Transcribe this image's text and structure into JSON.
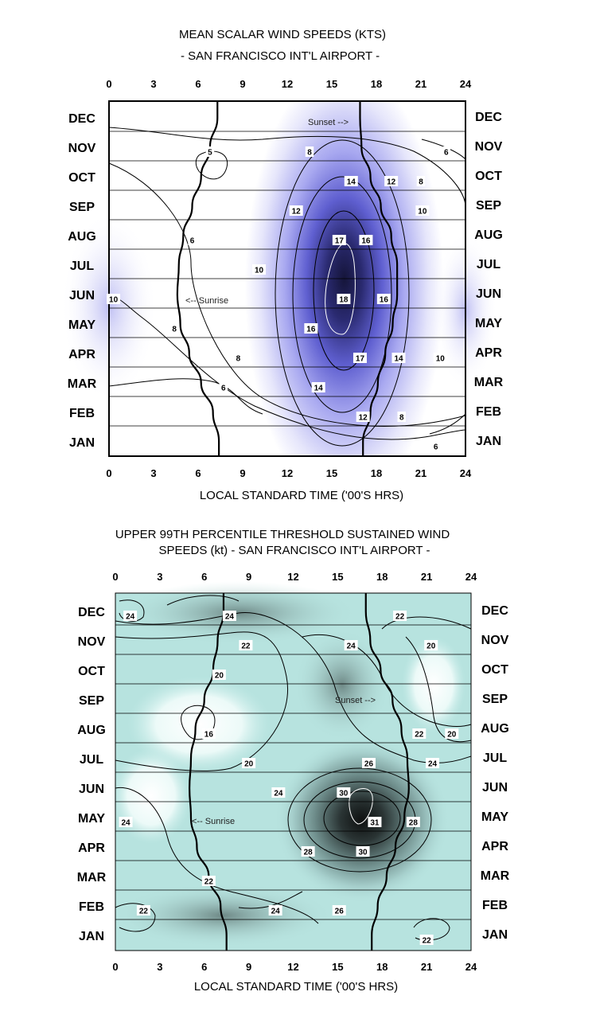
{
  "chart_data": [
    {
      "type": "heatmap",
      "title_line1": "MEAN SCALAR WIND SPEEDS (KTS)",
      "title_line2": "- SAN FRANCISCO INT'L AIRPORT -",
      "xlabel": "LOCAL STANDARD TIME ('00'S HRS)",
      "xticks": [
        "0",
        "3",
        "6",
        "9",
        "12",
        "15",
        "18",
        "21",
        "24"
      ],
      "xlim": [
        0,
        24
      ],
      "months_top_to_bottom": [
        "DEC",
        "NOV",
        "OCT",
        "SEP",
        "AUG",
        "JUL",
        "JUN",
        "MAY",
        "APR",
        "MAR",
        "FEB",
        "JAN"
      ],
      "colorscale": [
        "#ffffff",
        "#8c8cf0",
        "#1a1a40"
      ],
      "contour_levels": [
        5,
        6,
        8,
        10,
        12,
        14,
        16,
        17,
        18
      ],
      "peak": {
        "hour": 15.7,
        "month": "JUN",
        "value": 18
      },
      "contour_labels": [
        {
          "text": "5",
          "hour": 6.8,
          "month": "NOV"
        },
        {
          "text": "8",
          "hour": 13.5,
          "month": "NOV"
        },
        {
          "text": "6",
          "hour": 22.7,
          "month": "NOV"
        },
        {
          "text": "8",
          "hour": 21.0,
          "month": "OCT"
        },
        {
          "text": "14",
          "hour": 16.3,
          "month": "OCT"
        },
        {
          "text": "12",
          "hour": 19.0,
          "month": "OCT"
        },
        {
          "text": "12",
          "hour": 12.6,
          "month": "SEP"
        },
        {
          "text": "10",
          "hour": 21.1,
          "month": "SEP"
        },
        {
          "text": "6",
          "hour": 5.6,
          "month": "AUG"
        },
        {
          "text": "16",
          "hour": 17.3,
          "month": "AUG"
        },
        {
          "text": "17",
          "hour": 15.5,
          "month": "AUG"
        },
        {
          "text": "10",
          "hour": 10.1,
          "month": "JUL"
        },
        {
          "text": "10",
          "hour": 0.3,
          "month": "JUN"
        },
        {
          "text": "18",
          "hour": 15.8,
          "month": "JUN"
        },
        {
          "text": "16",
          "hour": 18.5,
          "month": "JUN"
        },
        {
          "text": "8",
          "hour": 4.4,
          "month": "MAY"
        },
        {
          "text": "16",
          "hour": 13.6,
          "month": "MAY"
        },
        {
          "text": "17",
          "hour": 16.9,
          "month": "APR"
        },
        {
          "text": "14",
          "hour": 19.5,
          "month": "APR"
        },
        {
          "text": "8",
          "hour": 8.7,
          "month": "APR"
        },
        {
          "text": "10",
          "hour": 22.3,
          "month": "APR"
        },
        {
          "text": "14",
          "hour": 14.1,
          "month": "MAR"
        },
        {
          "text": "6",
          "hour": 7.7,
          "month": "MAR"
        },
        {
          "text": "12",
          "hour": 17.1,
          "month": "FEB"
        },
        {
          "text": "8",
          "hour": 19.7,
          "month": "FEB"
        },
        {
          "text": "6",
          "hour": 22.0,
          "month": "JAN"
        }
      ],
      "annotations": {
        "sunset": "Sunset -->",
        "sunrise": "<-- Sunrise"
      },
      "sunrise_curve": [
        {
          "month": "DEC",
          "hour": 7.3
        },
        {
          "month": "NOV",
          "hour": 6.8
        },
        {
          "month": "OCT",
          "hour": 6.2
        },
        {
          "month": "SEP",
          "hour": 5.6
        },
        {
          "month": "AUG",
          "hour": 5.0
        },
        {
          "month": "JUL",
          "hour": 4.7
        },
        {
          "month": "JUN",
          "hour": 4.6
        },
        {
          "month": "MAY",
          "hour": 4.8
        },
        {
          "month": "APR",
          "hour": 5.4
        },
        {
          "month": "MAR",
          "hour": 6.2
        },
        {
          "month": "FEB",
          "hour": 7.0
        },
        {
          "month": "JAN",
          "hour": 7.4
        }
      ],
      "sunset_curve": [
        {
          "month": "DEC",
          "hour": 16.9
        },
        {
          "month": "NOV",
          "hour": 17.0
        },
        {
          "month": "OCT",
          "hour": 17.6
        },
        {
          "month": "SEP",
          "hour": 18.3
        },
        {
          "month": "AUG",
          "hour": 19.0
        },
        {
          "month": "JUL",
          "hour": 19.4
        },
        {
          "month": "JUN",
          "hour": 19.4
        },
        {
          "month": "MAY",
          "hour": 19.1
        },
        {
          "month": "APR",
          "hour": 18.6
        },
        {
          "month": "MAR",
          "hour": 18.1
        },
        {
          "month": "FEB",
          "hour": 17.6
        },
        {
          "month": "JAN",
          "hour": 17.1
        }
      ]
    },
    {
      "type": "heatmap",
      "title_line1": "UPPER 99TH PERCENTILE THRESHOLD SUSTAINED WIND",
      "title_line2": "SPEEDS (kt) - SAN FRANCISCO INT'L AIRPORT -",
      "xlabel": "LOCAL STANDARD TIME ('00'S HRS)",
      "xticks": [
        "0",
        "3",
        "6",
        "9",
        "12",
        "15",
        "18",
        "21",
        "24"
      ],
      "xlim": [
        0,
        24
      ],
      "months_top_to_bottom": [
        "DEC",
        "NOV",
        "OCT",
        "SEP",
        "AUG",
        "JUL",
        "JUN",
        "MAY",
        "APR",
        "MAR",
        "FEB",
        "JAN"
      ],
      "colorscale": [
        "#ffffff",
        "#a8e0dc",
        "#101414"
      ],
      "contour_levels": [
        16,
        20,
        22,
        24,
        26,
        28,
        30,
        31
      ],
      "peak": {
        "hour": 16.7,
        "month": "MAY",
        "value": 31
      },
      "contour_labels": [
        {
          "text": "24",
          "hour": 7.7,
          "month": "DEC"
        },
        {
          "text": "24",
          "hour": 1.0,
          "month": "DEC"
        },
        {
          "text": "22",
          "hour": 19.2,
          "month": "DEC"
        },
        {
          "text": "22",
          "hour": 8.8,
          "month": "NOV"
        },
        {
          "text": "24",
          "hour": 15.9,
          "month": "NOV"
        },
        {
          "text": "20",
          "hour": 21.3,
          "month": "NOV"
        },
        {
          "text": "20",
          "hour": 7.0,
          "month": "OCT"
        },
        {
          "text": "16",
          "hour": 6.3,
          "month": "AUG"
        },
        {
          "text": "22",
          "hour": 20.5,
          "month": "AUG"
        },
        {
          "text": "20",
          "hour": 22.7,
          "month": "AUG"
        },
        {
          "text": "26",
          "hour": 17.1,
          "month": "JUL"
        },
        {
          "text": "20",
          "hour": 9.0,
          "month": "JUL"
        },
        {
          "text": "24",
          "hour": 21.4,
          "month": "JUL"
        },
        {
          "text": "24",
          "hour": 11.0,
          "month": "JUN"
        },
        {
          "text": "30",
          "hour": 15.4,
          "month": "JUN"
        },
        {
          "text": "24",
          "hour": 0.7,
          "month": "MAY"
        },
        {
          "text": "28",
          "hour": 20.1,
          "month": "MAY"
        },
        {
          "text": "31",
          "hour": 17.5,
          "month": "MAY"
        },
        {
          "text": "28",
          "hour": 13.0,
          "month": "APR"
        },
        {
          "text": "30",
          "hour": 16.7,
          "month": "APR"
        },
        {
          "text": "22",
          "hour": 6.3,
          "month": "MAR"
        },
        {
          "text": "26",
          "hour": 15.1,
          "month": "FEB"
        },
        {
          "text": "22",
          "hour": 1.9,
          "month": "FEB"
        },
        {
          "text": "24",
          "hour": 10.8,
          "month": "FEB"
        },
        {
          "text": "22",
          "hour": 21.0,
          "month": "JAN"
        }
      ],
      "annotations": {
        "sunset": "Sunset -->",
        "sunrise": "<-- Sunrise"
      },
      "sunrise_curve": [
        {
          "month": "DEC",
          "hour": 7.3
        },
        {
          "month": "NOV",
          "hour": 6.9
        },
        {
          "month": "OCT",
          "hour": 6.6
        },
        {
          "month": "SEP",
          "hour": 6.0
        },
        {
          "month": "AUG",
          "hour": 5.4
        },
        {
          "month": "JUL",
          "hour": 5.1
        },
        {
          "month": "JUN",
          "hour": 5.0
        },
        {
          "month": "MAY",
          "hour": 5.1
        },
        {
          "month": "APR",
          "hour": 5.5
        },
        {
          "month": "MAR",
          "hour": 6.3
        },
        {
          "month": "FEB",
          "hour": 7.1
        },
        {
          "month": "JAN",
          "hour": 7.5
        }
      ],
      "sunset_curve": [
        {
          "month": "DEC",
          "hour": 16.9
        },
        {
          "month": "NOV",
          "hour": 17.2
        },
        {
          "month": "OCT",
          "hour": 17.9
        },
        {
          "month": "SEP",
          "hour": 18.7
        },
        {
          "month": "AUG",
          "hour": 19.3
        },
        {
          "month": "JUL",
          "hour": 19.7
        },
        {
          "month": "JUN",
          "hour": 19.8
        },
        {
          "month": "MAY",
          "hour": 19.5
        },
        {
          "month": "APR",
          "hour": 18.9
        },
        {
          "month": "MAR",
          "hour": 18.3
        },
        {
          "month": "FEB",
          "hour": 17.7
        },
        {
          "month": "JAN",
          "hour": 17.3
        }
      ]
    }
  ]
}
